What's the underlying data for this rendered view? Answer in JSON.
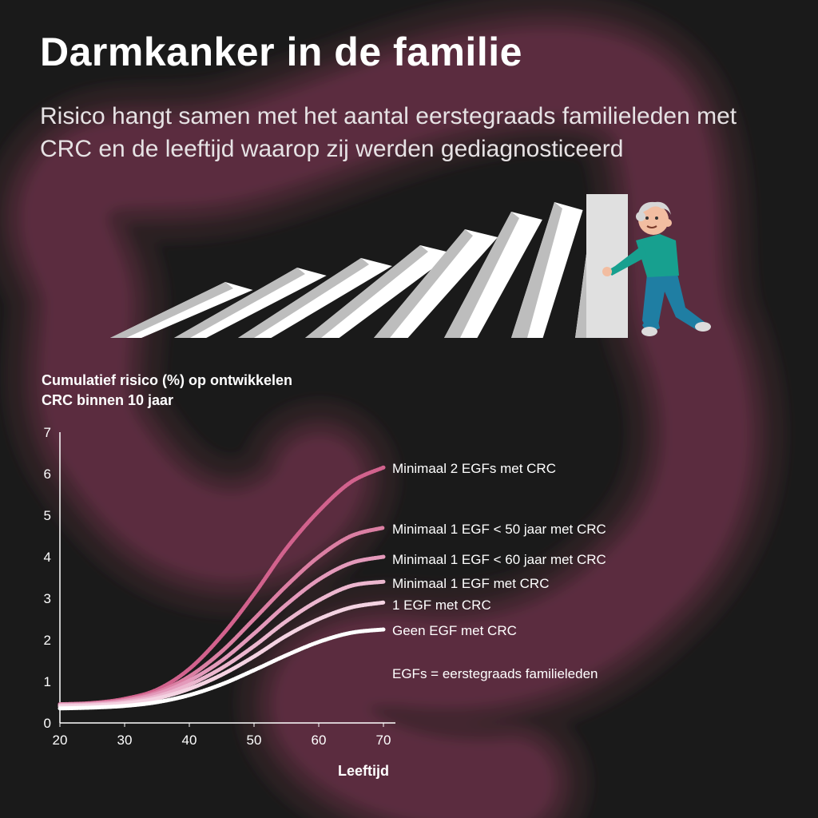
{
  "title": "Darmkanker in de familie",
  "subtitle": "Risico hangt samen met het aantal eerstegraads familieleden met CRC en de leeftijd waarop zij werden gediagnosticeerd",
  "colors": {
    "background": "#1a1a1a",
    "intestine": "#7a3550",
    "domino": "#e0e0e0"
  },
  "chart_data": {
    "type": "line",
    "ylabel": "Cumulatief risico (%) op ontwikkelen CRC binnen 10 jaar",
    "xlabel": "Leeftijd",
    "xlim": [
      20,
      70
    ],
    "ylim": [
      0,
      7
    ],
    "xticks": [
      20,
      30,
      40,
      50,
      60,
      70
    ],
    "yticks": [
      0,
      1,
      2,
      3,
      4,
      5,
      6,
      7
    ],
    "x": [
      20,
      25,
      30,
      35,
      40,
      45,
      50,
      55,
      60,
      65,
      70
    ],
    "series": [
      {
        "name": "Minimaal 2 EGFs met CRC",
        "color": "#d2628d",
        "values": [
          0.45,
          0.48,
          0.58,
          0.8,
          1.3,
          2.1,
          3.1,
          4.2,
          5.1,
          5.8,
          6.15
        ]
      },
      {
        "name": "Minimaal 1 EGF < 50 jaar met CRC",
        "color": "#db7fa3",
        "values": [
          0.45,
          0.47,
          0.55,
          0.74,
          1.12,
          1.72,
          2.5,
          3.3,
          4.0,
          4.5,
          4.7
        ]
      },
      {
        "name": "Minimaal 1 EGF < 60 jaar met CRC",
        "color": "#e49abb",
        "values": [
          0.44,
          0.46,
          0.53,
          0.7,
          1.02,
          1.5,
          2.15,
          2.85,
          3.45,
          3.85,
          4.0
        ]
      },
      {
        "name": "Minimaal 1 EGF met CRC",
        "color": "#ecb7cf",
        "values": [
          0.42,
          0.44,
          0.5,
          0.64,
          0.92,
          1.32,
          1.85,
          2.45,
          2.95,
          3.3,
          3.4
        ]
      },
      {
        "name": "1 EGF met CRC",
        "color": "#f4d3e2",
        "values": [
          0.4,
          0.42,
          0.47,
          0.59,
          0.82,
          1.16,
          1.6,
          2.1,
          2.5,
          2.78,
          2.9
        ]
      },
      {
        "name": "Geen EGF met CRC",
        "color": "#ffffff",
        "values": [
          0.35,
          0.37,
          0.41,
          0.5,
          0.67,
          0.93,
          1.27,
          1.63,
          1.95,
          2.17,
          2.25
        ]
      }
    ],
    "note": "EGFs = eerstegraads familieleden"
  }
}
